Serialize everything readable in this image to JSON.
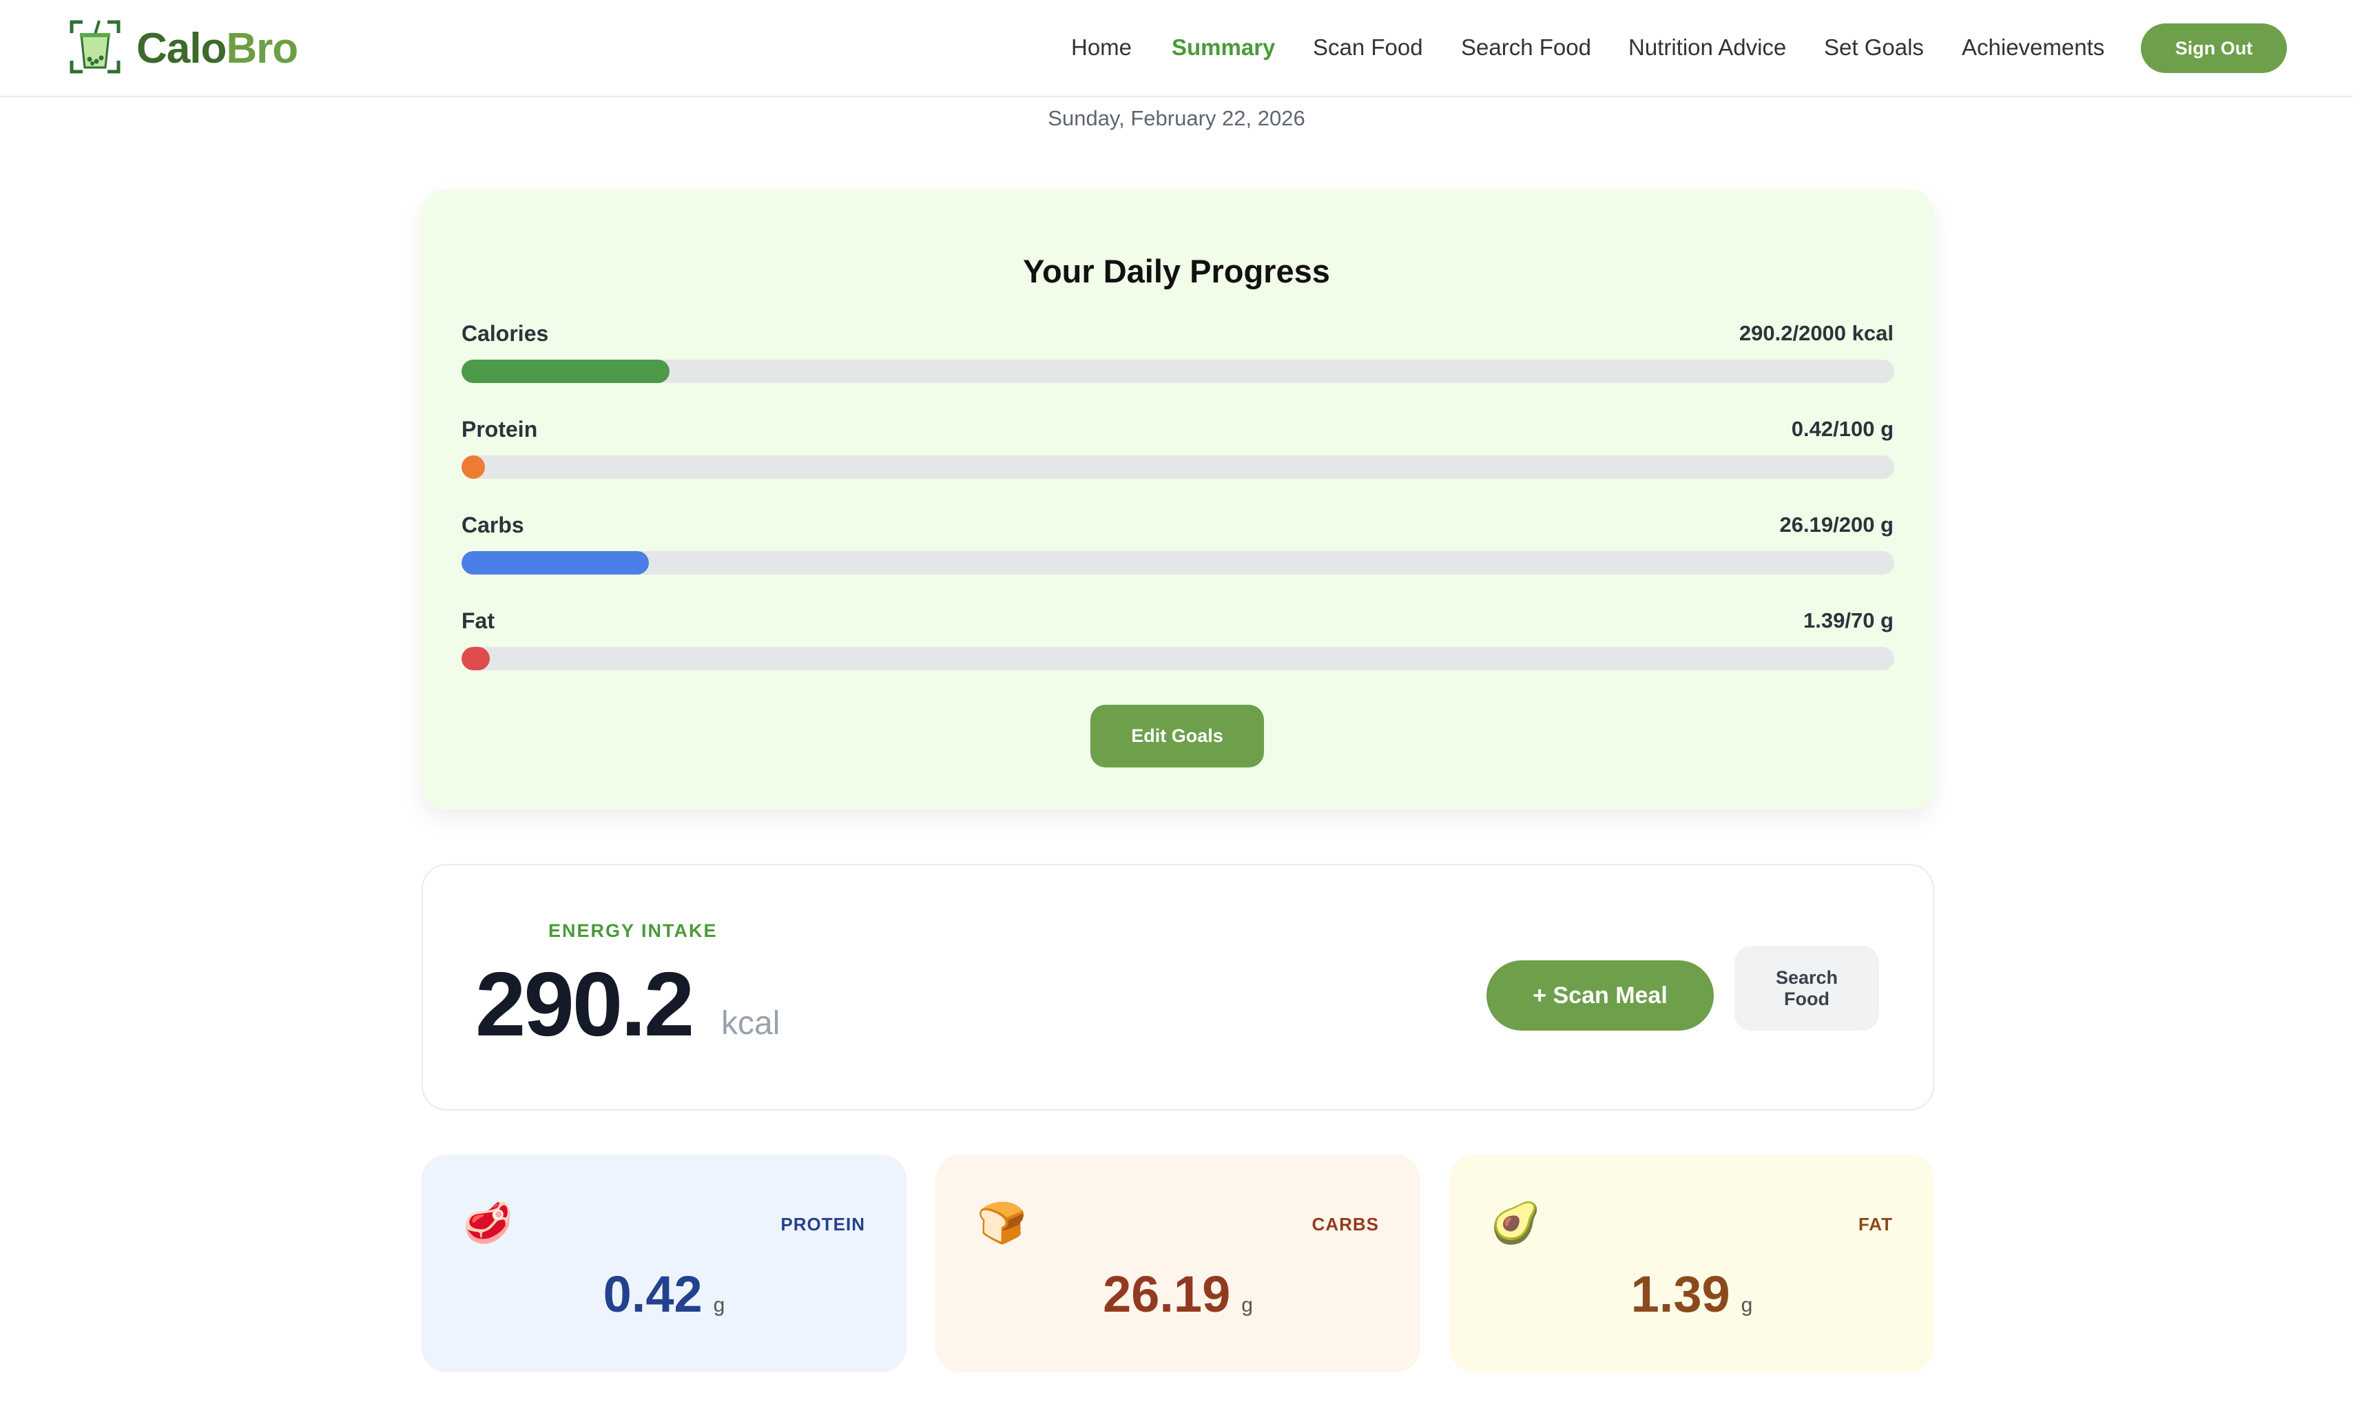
{
  "app": {
    "brand_part1": "Calo",
    "brand_part2": "Bro",
    "accent_color": "#6e9f4b",
    "logo_icon": "bubble-tea-scan-icon"
  },
  "nav": {
    "items": [
      {
        "label": "Home",
        "active": false
      },
      {
        "label": "Summary",
        "active": true
      },
      {
        "label": "Scan Food",
        "active": false
      },
      {
        "label": "Search Food",
        "active": false
      },
      {
        "label": "Nutrition Advice",
        "active": false
      },
      {
        "label": "Set Goals",
        "active": false
      },
      {
        "label": "Achievements",
        "active": false
      }
    ],
    "sign_out_label": "Sign Out"
  },
  "date": "Sunday, February 22, 2026",
  "progress": {
    "title": "Your Daily Progress",
    "metrics": [
      {
        "label": "Calories",
        "value_text": "290.2/2000 kcal",
        "fraction": 0.1451,
        "color": "#4c9a4a"
      },
      {
        "label": "Protein",
        "value_text": "0.42/100 g",
        "fraction": 0.0042,
        "color": "#ee7b34"
      },
      {
        "label": "Carbs",
        "value_text": "26.19/200 g",
        "fraction": 0.131,
        "color": "#4b7ee6"
      },
      {
        "label": "Fat",
        "value_text": "1.39/70 g",
        "fraction": 0.0199,
        "color": "#e04b4b"
      }
    ],
    "edit_goals_label": "Edit Goals"
  },
  "energy": {
    "label": "ENERGY INTAKE",
    "value": "290.2",
    "unit": "kcal",
    "scan_meal_label": "+ Scan Meal",
    "search_food_label": "Search Food"
  },
  "macros": [
    {
      "label": "PROTEIN",
      "value": "0.42",
      "unit": "g",
      "icon": "meat-icon",
      "emoji": "🥩",
      "bg": "#eef4fd",
      "value_color": "#24418f",
      "label_color": "#24418f"
    },
    {
      "label": "CARBS",
      "value": "26.19",
      "unit": "g",
      "icon": "bread-icon",
      "emoji": "🍞",
      "bg": "#fef5ec",
      "value_color": "#923a20",
      "label_color": "#923a20"
    },
    {
      "label": "FAT",
      "value": "1.39",
      "unit": "g",
      "icon": "avocado-icon",
      "emoji": "🥑",
      "bg": "#fefbe7",
      "value_color": "#8a4a1c",
      "label_color": "#8a4a1c"
    }
  ]
}
